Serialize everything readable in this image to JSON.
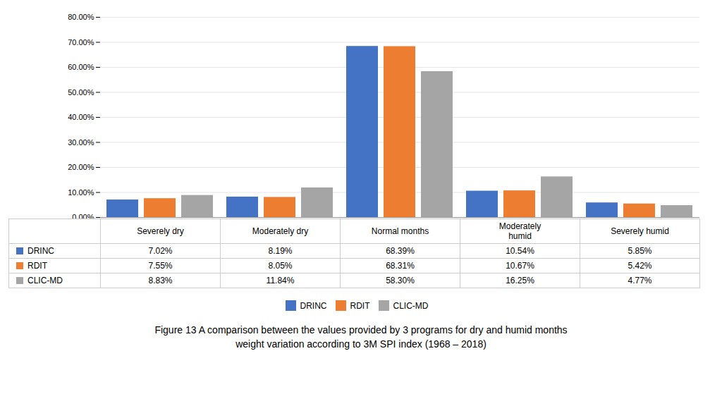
{
  "chart_data": {
    "type": "bar",
    "title": "Figure 13 A comparison between the values provided by 3 programs for dry and humid months",
    "subtitle": "weight variation according to 3M SPI index (1968 – 2018)",
    "categories": [
      "Severely dry",
      "Moderately dry",
      "Normal months",
      "Moderately\nhumid",
      "Severely humid"
    ],
    "series": [
      {
        "name": "DRINC",
        "color": "#4472C4",
        "values": [
          7.02,
          8.19,
          68.39,
          10.54,
          5.85
        ],
        "value_labels": [
          "7.02%",
          "8.19%",
          "68.39%",
          "10.54%",
          "5.85%"
        ]
      },
      {
        "name": "RDIT",
        "color": "#ED7D31",
        "values": [
          7.55,
          8.05,
          68.31,
          10.67,
          5.42
        ],
        "value_labels": [
          "7.55%",
          "8.05%",
          "68.31%",
          "10.67%",
          "5.42%"
        ]
      },
      {
        "name": "CLIC-MD",
        "color": "#A5A5A5",
        "values": [
          8.83,
          11.84,
          58.3,
          16.25,
          4.77
        ],
        "value_labels": [
          "8.83%",
          "11.84%",
          "58.30%",
          "16.25%",
          "4.77%"
        ]
      }
    ],
    "ylim": [
      0,
      80
    ],
    "yticks": [
      {
        "value": 0,
        "label": "0.00%"
      },
      {
        "value": 10,
        "label": "10.00%"
      },
      {
        "value": 20,
        "label": "20.00%"
      },
      {
        "value": 30,
        "label": "30.00%"
      },
      {
        "value": 40,
        "label": "40.00%"
      },
      {
        "value": 50,
        "label": "50.00%"
      },
      {
        "value": 60,
        "label": "60.00%"
      },
      {
        "value": 70,
        "label": "70.00%"
      },
      {
        "value": 80,
        "label": "80.00%"
      }
    ],
    "grid": true,
    "legend": "bottom"
  }
}
